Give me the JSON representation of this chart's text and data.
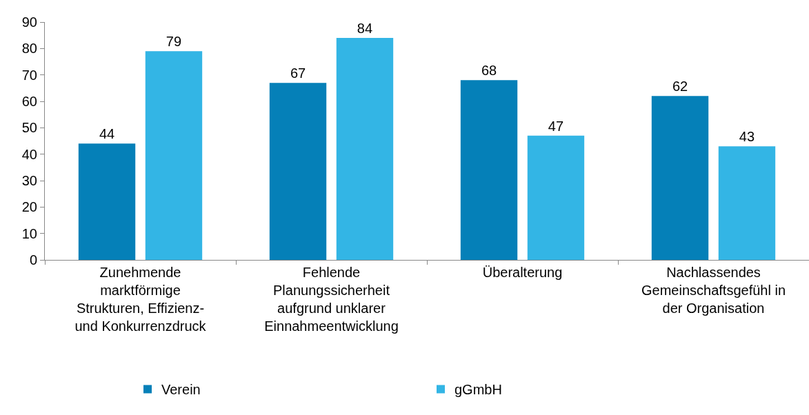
{
  "chart_data": {
    "type": "bar",
    "categories": [
      "Zunehmende\nmarktförmige\nStrukturen, Effizienz-\nund Konkurrenzdruck",
      "Fehlende\nPlanungssicherheit\naufgrund unklarer\nEinnahmeentwicklung",
      "Überalterung",
      "Nachlassendes\nGemeinschaftsgefühl in\nder Organisation"
    ],
    "series": [
      {
        "name": "Verein",
        "color": "#0580b8",
        "values": [
          44,
          67,
          68,
          62
        ]
      },
      {
        "name": "gGmbH",
        "color": "#33b5e5",
        "values": [
          79,
          84,
          47,
          43
        ]
      }
    ],
    "ylim": [
      0,
      90
    ],
    "yticks": [
      0,
      10,
      20,
      30,
      40,
      50,
      60,
      70,
      80,
      90
    ],
    "grid": false,
    "legend": "bottom",
    "data_labels": true
  }
}
